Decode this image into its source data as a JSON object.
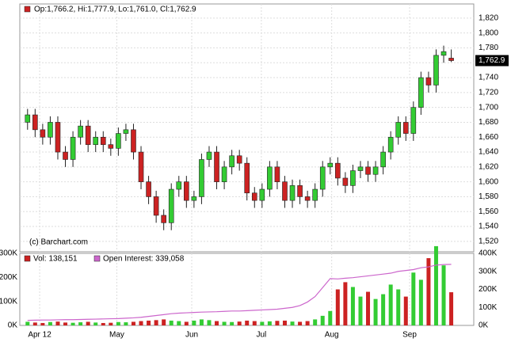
{
  "chart_data": [
    {
      "type": "candlestick",
      "legend": "Op:1,766.2, Hi:1,777.9, Lo:1,761.0, Cl:1,762.9",
      "credit": "(c) Barchart.com",
      "last_label": "1,762.9",
      "up_color": "#33cc33",
      "down_color": "#cc2222",
      "grid": true,
      "ylim": [
        1506,
        1839
      ],
      "yticks": [
        {
          "value": 1520,
          "label": "1,520"
        },
        {
          "value": 1540,
          "label": "1,540"
        },
        {
          "value": 1560,
          "label": "1,560"
        },
        {
          "value": 1580,
          "label": "1,580"
        },
        {
          "value": 1600,
          "label": "1,600"
        },
        {
          "value": 1620,
          "label": "1,620"
        },
        {
          "value": 1640,
          "label": "1,640"
        },
        {
          "value": 1660,
          "label": "1,660"
        },
        {
          "value": 1680,
          "label": "1,680"
        },
        {
          "value": 1700,
          "label": "1,700"
        },
        {
          "value": 1720,
          "label": "1,720"
        },
        {
          "value": 1740,
          "label": "1,740"
        },
        {
          "value": 1760,
          "label": "1,760"
        },
        {
          "value": 1780,
          "label": "1,780"
        },
        {
          "value": 1800,
          "label": "1,800"
        },
        {
          "value": 1820,
          "label": "1,820"
        }
      ],
      "xticks": [
        {
          "value": 1.6,
          "label": "Apr 12"
        },
        {
          "value": 11.8,
          "label": "May"
        },
        {
          "value": 21.7,
          "label": "Jun"
        },
        {
          "value": 30.9,
          "label": "Jul"
        },
        {
          "value": 40.2,
          "label": "Aug"
        },
        {
          "value": 50.5,
          "label": "Sep"
        }
      ],
      "open": [
        1680,
        1690,
        1670,
        1660,
        1680,
        1640,
        1630,
        1660,
        1675,
        1650,
        1660,
        1650,
        1645,
        1665,
        1670,
        1640,
        1600,
        1580,
        1555,
        1545,
        1590,
        1600,
        1575,
        1580,
        1630,
        1640,
        1600,
        1620,
        1635,
        1625,
        1585,
        1575,
        1590,
        1620,
        1600,
        1575,
        1595,
        1580,
        1575,
        1590,
        1620,
        1625,
        1605,
        1595,
        1615,
        1620,
        1610,
        1620,
        1640,
        1660,
        1680,
        1665,
        1700,
        1740,
        1730,
        1770,
        1766.2
      ],
      "high": [
        1698,
        1698,
        1678,
        1688,
        1688,
        1648,
        1668,
        1683,
        1683,
        1668,
        1668,
        1658,
        1673,
        1678,
        1678,
        1648,
        1608,
        1588,
        1563,
        1598,
        1608,
        1608,
        1588,
        1638,
        1648,
        1648,
        1628,
        1643,
        1643,
        1633,
        1593,
        1598,
        1628,
        1628,
        1608,
        1603,
        1603,
        1588,
        1598,
        1628,
        1633,
        1633,
        1613,
        1623,
        1628,
        1628,
        1628,
        1648,
        1668,
        1688,
        1688,
        1708,
        1748,
        1748,
        1778,
        1783,
        1777.9
      ],
      "low": [
        1670,
        1660,
        1650,
        1650,
        1630,
        1620,
        1620,
        1650,
        1640,
        1640,
        1640,
        1635,
        1635,
        1655,
        1630,
        1590,
        1570,
        1545,
        1535,
        1535,
        1580,
        1565,
        1565,
        1570,
        1620,
        1590,
        1590,
        1610,
        1615,
        1575,
        1565,
        1565,
        1580,
        1590,
        1565,
        1565,
        1570,
        1565,
        1565,
        1580,
        1610,
        1595,
        1585,
        1585,
        1605,
        1600,
        1600,
        1610,
        1630,
        1650,
        1655,
        1655,
        1690,
        1720,
        1720,
        1760,
        1761.0
      ],
      "close": [
        1690,
        1670,
        1660,
        1680,
        1640,
        1630,
        1660,
        1675,
        1650,
        1660,
        1650,
        1645,
        1665,
        1670,
        1640,
        1600,
        1580,
        1555,
        1545,
        1590,
        1600,
        1575,
        1580,
        1630,
        1640,
        1600,
        1620,
        1635,
        1625,
        1585,
        1575,
        1590,
        1620,
        1600,
        1575,
        1595,
        1580,
        1575,
        1590,
        1620,
        1625,
        1605,
        1595,
        1615,
        1620,
        1610,
        1620,
        1640,
        1660,
        1680,
        1665,
        1700,
        1740,
        1730,
        1770,
        1775,
        1762.9
      ]
    },
    {
      "type": "volume",
      "series": [
        {
          "name": "Vol: 138,151",
          "color": "#cc2222",
          "values": [
            15000,
            12000,
            10000,
            14000,
            16000,
            12000,
            11000,
            13000,
            15000,
            12000,
            10000,
            11000,
            14000,
            13000,
            15000,
            18000,
            20000,
            22000,
            25000,
            20000,
            18000,
            15000,
            20000,
            25000,
            22000,
            18000,
            15000,
            14000,
            16000,
            20000,
            18000,
            15000,
            17000,
            19000,
            20000,
            16000,
            15000,
            18000,
            25000,
            40000,
            60000,
            150000,
            180000,
            160000,
            120000,
            140000,
            110000,
            130000,
            170000,
            150000,
            120000,
            220000,
            190000,
            280000,
            330000,
            250000,
            138151
          ]
        },
        {
          "name": "Open Interest: 339,058",
          "color": "#cc66cc",
          "axis": "y2",
          "values": [
            28000,
            29000,
            30000,
            30000,
            31000,
            32000,
            32000,
            33000,
            34000,
            35000,
            36000,
            37000,
            38000,
            40000,
            42000,
            45000,
            50000,
            55000,
            60000,
            65000,
            68000,
            70000,
            72000,
            74000,
            75000,
            76000,
            78000,
            80000,
            80000,
            82000,
            84000,
            86000,
            88000,
            90000,
            95000,
            100000,
            110000,
            130000,
            160000,
            210000,
            260000,
            258000,
            262000,
            265000,
            270000,
            275000,
            280000,
            285000,
            290000,
            300000,
            305000,
            310000,
            320000,
            325000,
            335000,
            338000,
            339058
          ]
        }
      ],
      "ylim": [
        0,
        300000
      ],
      "yticks": [
        {
          "value": 0,
          "label": "0K"
        },
        {
          "value": 100000,
          "label": "100K"
        },
        {
          "value": 200000,
          "label": "200K"
        },
        {
          "value": 300000,
          "label": "300K"
        }
      ],
      "y2lim": [
        0,
        400000
      ],
      "y2ticks": [
        {
          "value": 0,
          "label": "0K"
        },
        {
          "value": 100000,
          "label": "100K"
        },
        {
          "value": 200000,
          "label": "200K"
        },
        {
          "value": 300000,
          "label": "300K"
        },
        {
          "value": 400000,
          "label": "400K"
        }
      ]
    }
  ]
}
